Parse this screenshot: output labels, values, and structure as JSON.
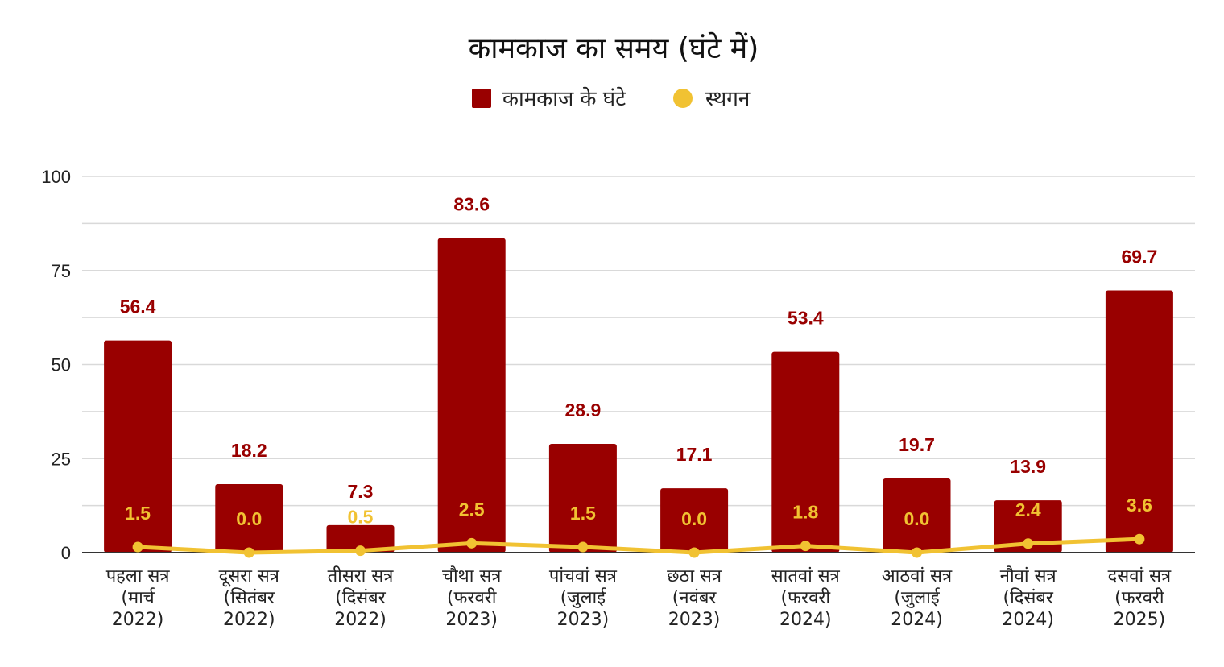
{
  "chart_data": {
    "type": "bar",
    "title": "कामकाज का समय (घंटे में)",
    "xlabel": "",
    "ylabel": "",
    "ylim": [
      0,
      100
    ],
    "yticks": [
      "0",
      "25",
      "50",
      "75",
      "100"
    ],
    "grid": true,
    "legend_position": "top",
    "categories": [
      [
        "पहला सत्र",
        "(मार्च",
        "2022)"
      ],
      [
        "दूसरा सत्र",
        "(सितंबर",
        "2022)"
      ],
      [
        "तीसरा सत्र",
        "(दिसंबर",
        "2022)"
      ],
      [
        "चौथा सत्र",
        "(फरवरी",
        "2023)"
      ],
      [
        "पांचवां सत्र",
        "(जुलाई",
        "2023)"
      ],
      [
        "छठा सत्र",
        "(नवंबर",
        "2023)"
      ],
      [
        "सातवां सत्र",
        "(फरवरी",
        "2024)"
      ],
      [
        "आठवां सत्र",
        "(जुलाई",
        "2024)"
      ],
      [
        "नौवां सत्र",
        "(दिसंबर",
        "2024)"
      ],
      [
        "दसवां सत्र",
        "(फरवरी",
        "2025)"
      ]
    ],
    "series": [
      {
        "name": "कामकाज के घंटे",
        "type": "bar",
        "color": "#990000",
        "values": [
          56.4,
          18.2,
          7.3,
          83.6,
          28.9,
          17.1,
          53.4,
          19.7,
          13.9,
          69.7
        ],
        "labels": [
          "56.4",
          "18.2",
          "7.3",
          "83.6",
          "28.9",
          "17.1",
          "53.4",
          "19.7",
          "13.9",
          "69.7"
        ]
      },
      {
        "name": "स्थगन",
        "type": "line",
        "color": "#F1C232",
        "values": [
          1.5,
          0.0,
          0.5,
          2.5,
          1.5,
          0.0,
          1.8,
          0.0,
          2.4,
          3.6
        ],
        "labels": [
          "1.5",
          "0.0",
          "0.5",
          "2.5",
          "1.5",
          "0.0",
          "1.8",
          "0.0",
          "2.4",
          "3.6"
        ]
      }
    ]
  }
}
